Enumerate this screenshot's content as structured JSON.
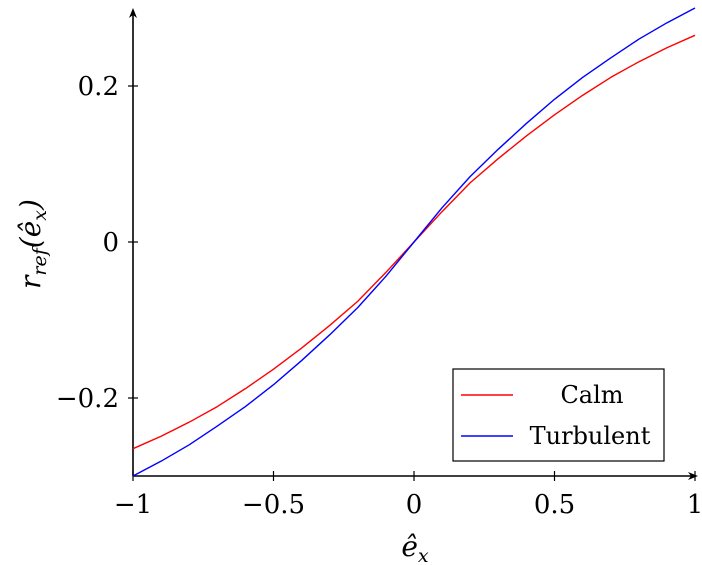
{
  "chart_data": {
    "type": "line",
    "xlabel": "ê_x",
    "ylabel": "r_ref(ê_x)",
    "xlim": [
      -1,
      1
    ],
    "ylim": [
      -0.3,
      0.3
    ],
    "x_ticks": [
      -1,
      -0.5,
      0,
      0.5,
      1
    ],
    "x_tick_labels": [
      "−1",
      "−0.5",
      "0",
      "0.5",
      "1"
    ],
    "y_ticks": [
      -0.2,
      0,
      0.2
    ],
    "y_tick_labels": [
      "−0.2",
      "0",
      "0.2"
    ],
    "grid": false,
    "legend_position": "bottom-right",
    "series": [
      {
        "name": "Calm",
        "color": "#ff0000",
        "x": [
          -1,
          -0.9,
          -0.8,
          -0.7,
          -0.6,
          -0.5,
          -0.4,
          -0.3,
          -0.2,
          -0.1,
          0,
          0.1,
          0.2,
          0.3,
          0.4,
          0.5,
          0.6,
          0.7,
          0.8,
          0.9,
          1
        ],
        "y": [
          -0.265,
          -0.249,
          -0.231,
          -0.211,
          -0.188,
          -0.163,
          -0.136,
          -0.107,
          -0.076,
          -0.039,
          0,
          0.039,
          0.076,
          0.107,
          0.136,
          0.163,
          0.188,
          0.211,
          0.231,
          0.249,
          0.265
        ]
      },
      {
        "name": "Turbulent",
        "color": "#0000ff",
        "x": [
          -1,
          -0.9,
          -0.8,
          -0.7,
          -0.6,
          -0.5,
          -0.4,
          -0.3,
          -0.2,
          -0.1,
          0,
          0.1,
          0.2,
          0.3,
          0.4,
          0.5,
          0.6,
          0.7,
          0.8,
          0.9,
          1
        ],
        "y": [
          -0.3,
          -0.281,
          -0.26,
          -0.236,
          -0.211,
          -0.183,
          -0.152,
          -0.119,
          -0.084,
          -0.044,
          0,
          0.044,
          0.084,
          0.119,
          0.152,
          0.183,
          0.211,
          0.236,
          0.26,
          0.281,
          0.3
        ]
      }
    ]
  }
}
